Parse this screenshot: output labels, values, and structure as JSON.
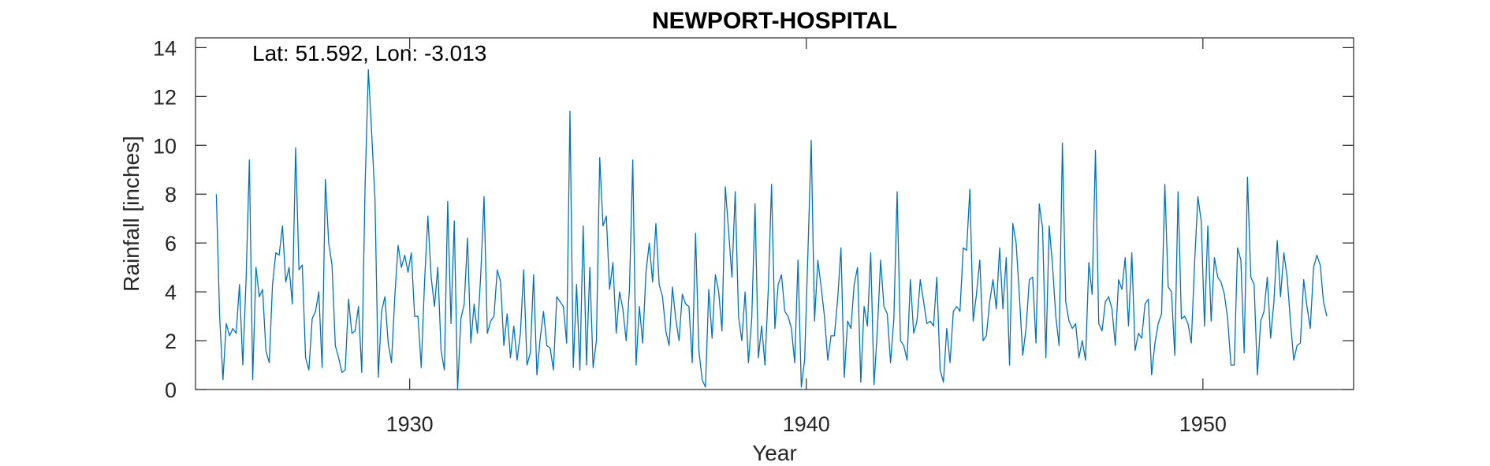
{
  "chart_data": {
    "type": "line",
    "title": "NEWPORT-HOSPITAL",
    "xlabel": "Year",
    "ylabel": "Rainfall [inches]",
    "annotation": "Lat: 51.592, Lon: -3.013",
    "xlim": [
      1924.6,
      1953.8
    ],
    "ylim": [
      0,
      14.4
    ],
    "xticks": [
      1930,
      1940,
      1950
    ],
    "yticks": [
      0,
      2,
      4,
      6,
      8,
      10,
      12,
      14
    ],
    "grid": false,
    "box": true,
    "series": [
      {
        "color": "#0072BD",
        "x_start": 1925.125,
        "x_step": 0.08333,
        "values": [
          8.0,
          3.0,
          0.4,
          2.7,
          2.2,
          2.5,
          2.3,
          4.3,
          1.0,
          4.5,
          9.4,
          0.4,
          5.0,
          3.8,
          4.1,
          1.6,
          1.1,
          4.3,
          5.6,
          5.5,
          6.7,
          4.4,
          5.0,
          3.5,
          9.9,
          4.9,
          5.1,
          1.3,
          0.8,
          2.9,
          3.2,
          4.0,
          0.9,
          8.6,
          6.0,
          5.1,
          1.8,
          1.3,
          0.7,
          0.8,
          3.7,
          2.3,
          2.4,
          3.4,
          0.7,
          8.3,
          13.1,
          10.5,
          7.8,
          0.5,
          3.2,
          3.8,
          1.9,
          1.1,
          3.8,
          5.9,
          5.0,
          5.5,
          4.8,
          5.6,
          3.0,
          3.0,
          0.9,
          4.4,
          7.1,
          4.6,
          3.4,
          5.0,
          1.6,
          0.8,
          7.7,
          2.7,
          6.9,
          0.0,
          2.9,
          3.5,
          6.2,
          1.9,
          3.5,
          2.3,
          4.7,
          7.9,
          2.3,
          2.8,
          3.0,
          4.9,
          4.4,
          1.8,
          3.1,
          1.3,
          2.6,
          1.2,
          2.3,
          4.9,
          1.0,
          1.5,
          4.7,
          0.6,
          2.1,
          3.2,
          1.8,
          1.7,
          0.8,
          3.8,
          3.6,
          3.4,
          1.9,
          11.4,
          0.9,
          4.3,
          0.8,
          6.7,
          1.0,
          5.0,
          0.9,
          2.0,
          9.5,
          6.7,
          7.1,
          4.1,
          5.2,
          2.3,
          4.0,
          3.3,
          2.0,
          4.1,
          9.4,
          1.0,
          3.4,
          1.9,
          4.8,
          6.0,
          4.4,
          6.8,
          4.3,
          3.8,
          2.4,
          1.8,
          4.2,
          2.9,
          2.0,
          3.9,
          3.5,
          3.4,
          1.1,
          6.4,
          1.6,
          0.4,
          0.1,
          4.1,
          2.1,
          4.7,
          4.0,
          2.4,
          8.3,
          6.5,
          4.6,
          8.1,
          3.0,
          2.0,
          4.0,
          1.1,
          2.9,
          7.6,
          1.3,
          2.6,
          1.0,
          4.1,
          8.4,
          2.5,
          4.3,
          4.7,
          3.2,
          3.0,
          2.5,
          1.1,
          5.3,
          0.1,
          1.2,
          5.6,
          10.2,
          2.8,
          5.3,
          4.2,
          3.0,
          1.2,
          2.2,
          2.2,
          3.7,
          5.8,
          0.5,
          2.8,
          2.5,
          4.3,
          5.0,
          0.3,
          3.4,
          2.6,
          5.6,
          0.2,
          2.4,
          5.3,
          3.4,
          3.1,
          1.1,
          2.9,
          8.1,
          2.0,
          1.8,
          1.2,
          4.5,
          2.3,
          2.8,
          4.5,
          3.6,
          2.7,
          2.8,
          2.6,
          4.6,
          0.8,
          0.3,
          2.5,
          1.1,
          3.2,
          3.4,
          3.2,
          5.8,
          5.7,
          8.2,
          2.8,
          3.9,
          5.3,
          2.0,
          2.2,
          3.6,
          4.5,
          3.3,
          5.8,
          3.3,
          5.4,
          1.0,
          6.8,
          6.0,
          3.8,
          1.4,
          2.5,
          4.5,
          4.6,
          1.9,
          7.6,
          6.6,
          1.3,
          6.7,
          5.1,
          3.0,
          1.8,
          10.1,
          3.6,
          2.8,
          2.5,
          2.7,
          1.3,
          2.0,
          1.2,
          5.2,
          3.9,
          9.8,
          2.7,
          2.4,
          3.6,
          3.8,
          3.3,
          1.8,
          4.5,
          4.1,
          5.4,
          2.6,
          5.6,
          1.6,
          2.3,
          2.1,
          3.5,
          3.7,
          0.6,
          1.9,
          2.7,
          3.1,
          8.4,
          4.2,
          4.0,
          1.4,
          8.1,
          2.9,
          3.0,
          2.7,
          1.9,
          5.2,
          7.9,
          6.9,
          2.6,
          6.7,
          2.8,
          5.4,
          4.6,
          4.4,
          3.9,
          2.9,
          1.0,
          1.0,
          5.8,
          5.3,
          1.5,
          8.7,
          4.6,
          4.3,
          0.6,
          2.8,
          3.2,
          4.6,
          2.1,
          3.6,
          6.1,
          3.8,
          5.6,
          4.6,
          2.8,
          1.2,
          1.8,
          1.9,
          4.5,
          3.4,
          2.5,
          5.0,
          5.5,
          5.1,
          3.6,
          3.0
        ]
      }
    ]
  }
}
